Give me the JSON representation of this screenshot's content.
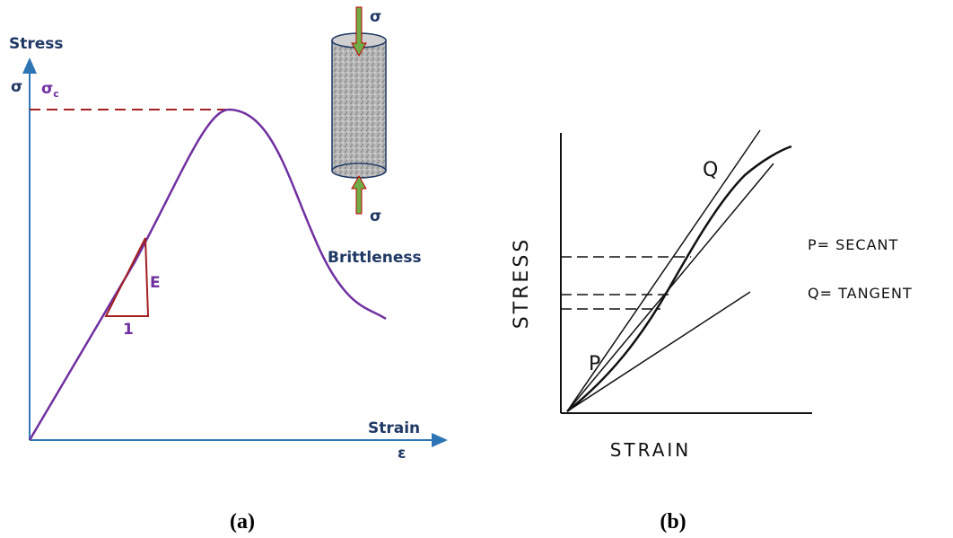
{
  "panel_a": {
    "y_axis_label": "Stress",
    "y_axis_symbol": "σ",
    "peak_label": "σ",
    "peak_subscript": "c",
    "load_top": "σ",
    "load_bottom": "σ",
    "region_label": "Brittleness",
    "slope_label": "E",
    "run_label": "1",
    "x_axis_label": "Strain",
    "x_axis_symbol": "ε",
    "caption": "(a)"
  },
  "panel_b": {
    "y_axis_label": "STRESS",
    "x_axis_label": "STRAIN",
    "point_q": "Q",
    "point_p": "P",
    "legend": [
      "P= SECANT",
      "Q= TANGENT"
    ],
    "caption": "(b)"
  }
}
